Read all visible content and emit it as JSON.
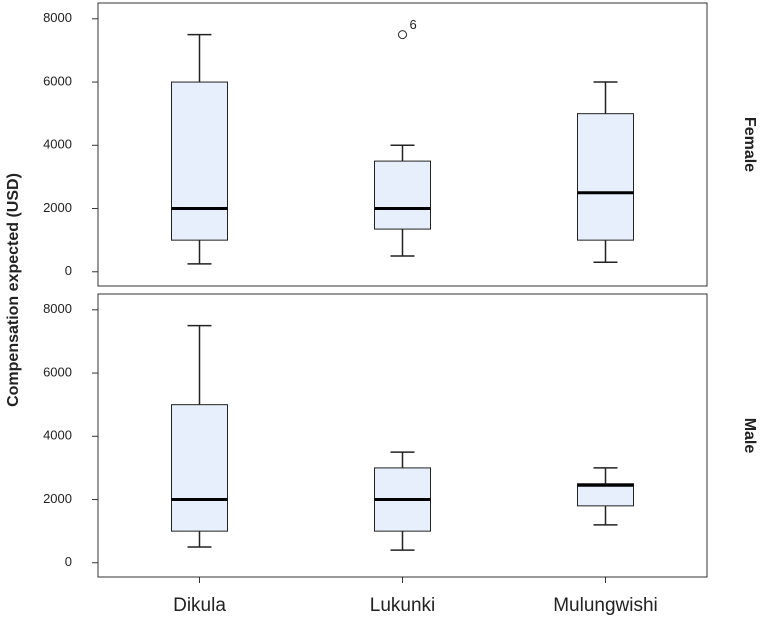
{
  "chart_data": {
    "type": "box",
    "ylabel": "Compensation expected (USD)",
    "categories": [
      "Dikula",
      "Lukunki",
      "Mulungwishi"
    ],
    "ylim": [
      -450,
      8500
    ],
    "yticks": [
      0,
      2000,
      4000,
      6000,
      8000
    ],
    "color": "#e6effb",
    "panels": [
      {
        "name": "Female",
        "boxes": [
          {
            "min": 250,
            "q1": 1000,
            "median": 2000,
            "q3": 6000,
            "max": 7500,
            "outliers": []
          },
          {
            "min": 500,
            "q1": 1350,
            "median": 2000,
            "q3": 3500,
            "max": 4000,
            "outliers": [
              {
                "value": 7500,
                "label": "6"
              }
            ]
          },
          {
            "min": 300,
            "q1": 1000,
            "median": 2500,
            "q3": 5000,
            "max": 6000,
            "outliers": []
          }
        ]
      },
      {
        "name": "Male",
        "boxes": [
          {
            "min": 500,
            "q1": 1000,
            "median": 2000,
            "q3": 5000,
            "max": 7500,
            "outliers": []
          },
          {
            "min": 400,
            "q1": 1000,
            "median": 2000,
            "q3": 3000,
            "max": 3500,
            "outliers": []
          },
          {
            "min": 1200,
            "q1": 1800,
            "median": 2450,
            "q3": 2500,
            "max": 3000,
            "outliers": []
          }
        ]
      }
    ]
  }
}
